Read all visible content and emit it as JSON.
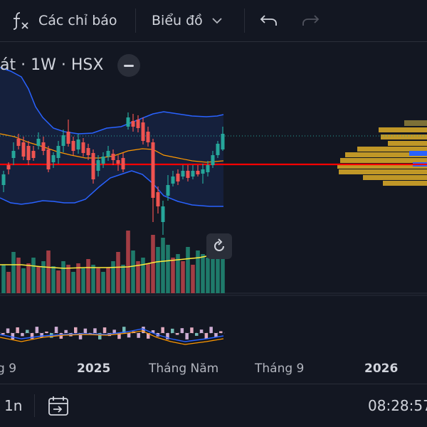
{
  "toolbar": {
    "indicators_label": "Các chỉ báo",
    "chart_type_label": "Biểu đồ"
  },
  "symbol_bar": {
    "text": "át · 1W · HSX"
  },
  "chart_data": {
    "type": "candlestick",
    "x_ticks": [
      "g 9",
      "2025",
      "Tháng Năm",
      "Tháng 9",
      "2026"
    ],
    "bold_ticks": [
      "2025",
      "2026"
    ],
    "indicators": [
      "Bollinger Bands",
      "Volume",
      "Volume MA",
      "Volume Profile",
      "Oscillator"
    ],
    "colors": {
      "up": "#26a69a",
      "down": "#ef5350",
      "bb_band": "#2962ff",
      "bb_basis": "#ff9800",
      "volume_ma": "#ffeb3b",
      "price_line": "#ff0000",
      "vp_bars": "#d4a528",
      "vp_poc": "#2962ff"
    }
  },
  "bottom_bar": {
    "range_label": "1n",
    "time": "08:28:57"
  }
}
